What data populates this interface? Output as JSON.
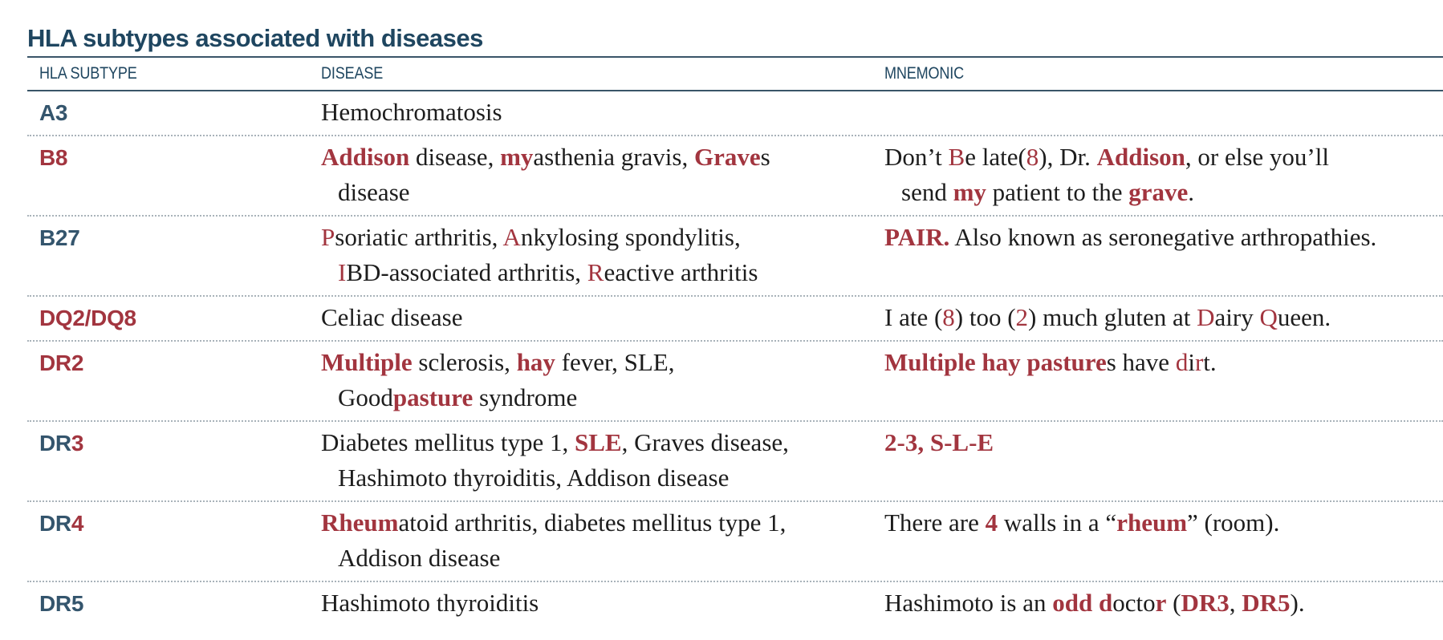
{
  "title": "HLA subtypes associated with diseases",
  "headers": {
    "subtype": "HLA SUBTYPE",
    "disease": "DISEASE",
    "mnemonic": "MNEMONIC"
  },
  "colors": {
    "heading_blue": "#1f4660",
    "subtype_blue": "#34556d",
    "accent_red": "#a2353f",
    "body_text": "#1d1d1d",
    "dotted_rule": "#a9b3ba"
  },
  "rows": [
    {
      "subtype": "A3",
      "disease_line1": "Hemochromatosis",
      "disease_line2": "",
      "mnemonic_line1": "",
      "mnemonic_line2": ""
    },
    {
      "subtype": "B8",
      "disease_line1": "Addison disease, myasthenia gravis, Graves",
      "disease_line2": "disease",
      "mnemonic_line1": "Don’t Be late(8), Dr. Addison, or else you’ll",
      "mnemonic_line2": "send my patient to the grave."
    },
    {
      "subtype": "B27",
      "disease_line1": "Psoriatic arthritis, Ankylosing spondylitis,",
      "disease_line2": "IBD-associated arthritis, Reactive arthritis",
      "mnemonic_line1": "PAIR. Also known as seronegative arthropathies.",
      "mnemonic_line2": ""
    },
    {
      "subtype": "DQ2/DQ8",
      "disease_line1": "Celiac disease",
      "disease_line2": "",
      "mnemonic_line1": "I ate (8) too (2) much gluten at Dairy Queen.",
      "mnemonic_line2": ""
    },
    {
      "subtype": "DR2",
      "disease_line1": "Multiple sclerosis, hay fever, SLE,",
      "disease_line2": "Goodpasture syndrome",
      "mnemonic_line1": "Multiple hay pastures have dirt.",
      "mnemonic_line2": ""
    },
    {
      "subtype": "DR3",
      "disease_line1": "Diabetes mellitus type 1, SLE, Graves disease,",
      "disease_line2": "Hashimoto thyroiditis, Addison disease",
      "mnemonic_line1": "2-3, S-L-E",
      "mnemonic_line2": ""
    },
    {
      "subtype": "DR4",
      "disease_line1": "Rheumatoid arthritis, diabetes mellitus type 1,",
      "disease_line2": "Addison disease",
      "mnemonic_line1": "There are 4 walls in a “rheum” (room).",
      "mnemonic_line2": ""
    },
    {
      "subtype": "DR5",
      "disease_line1": "Hashimoto thyroiditis",
      "disease_line2": "",
      "mnemonic_line1": "Hashimoto is an odd doctor (DR3, DR5).",
      "mnemonic_line2": ""
    }
  ]
}
